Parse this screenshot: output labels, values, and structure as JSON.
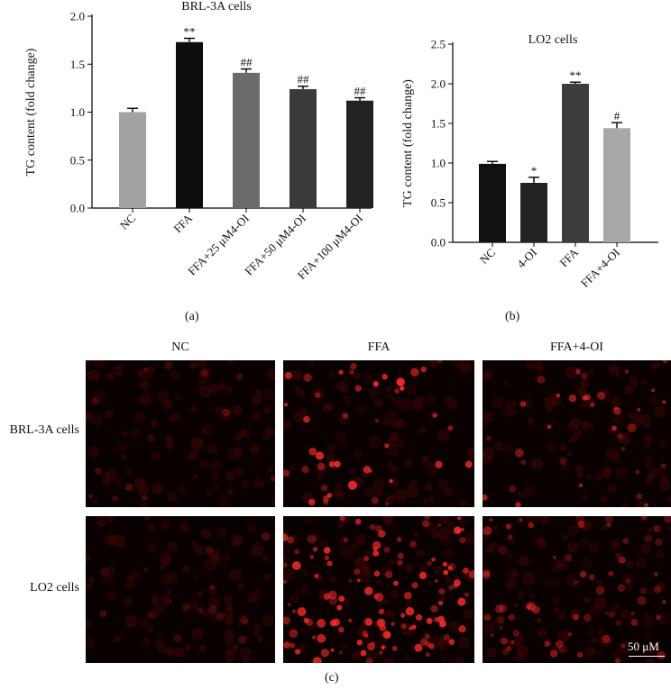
{
  "chart_data": [
    {
      "type": "bar",
      "title": "BRL-3A cells",
      "xlabel": "",
      "ylabel": "TG content (fold change)",
      "ylim": [
        0,
        2.0
      ],
      "yticks": [
        "0.0",
        "0.5",
        "1.0",
        "1.5",
        "2.0"
      ],
      "categories": [
        "NC",
        "FFA",
        "FFA+25 μM4-OI",
        "FFA+50 μM4-OI",
        "FFA+100 μM4-OI"
      ],
      "values": [
        1.0,
        1.73,
        1.41,
        1.24,
        1.12
      ],
      "errors": [
        0.04,
        0.04,
        0.04,
        0.03,
        0.03
      ],
      "annotations": [
        "",
        "**",
        "##",
        "##",
        "##"
      ],
      "colors": [
        "#a3a3a3",
        "#0d0d0d",
        "#6b6b6b",
        "#3a3a3a",
        "#222222"
      ],
      "grid": false
    },
    {
      "type": "bar",
      "title": "LO2 cells",
      "xlabel": "",
      "ylabel": "TG content (fold change)",
      "ylim": [
        0,
        2.5
      ],
      "yticks": [
        "0.0",
        "0.5",
        "1.0",
        "1.5",
        "2.0",
        "2.5"
      ],
      "categories": [
        "NC",
        "4-OI",
        "FFA",
        "FFA+4-OI"
      ],
      "values": [
        0.99,
        0.75,
        2.0,
        1.44
      ],
      "errors": [
        0.03,
        0.07,
        0.02,
        0.07
      ],
      "annotations": [
        "",
        "*",
        "**",
        "#"
      ],
      "colors": [
        "#111111",
        "#222222",
        "#3d3d3d",
        "#a8a8a8"
      ],
      "grid": false
    }
  ],
  "panels": {
    "a": "(a)",
    "b": "(b)",
    "c": "(c)"
  },
  "micrographs": {
    "columns": [
      "NC",
      "FFA",
      "FFA+4-OI"
    ],
    "rows": [
      "BRL-3A cells",
      "LO2 cells"
    ],
    "scale_bar": "50 μM",
    "stain_color": "#ff2a2a"
  }
}
